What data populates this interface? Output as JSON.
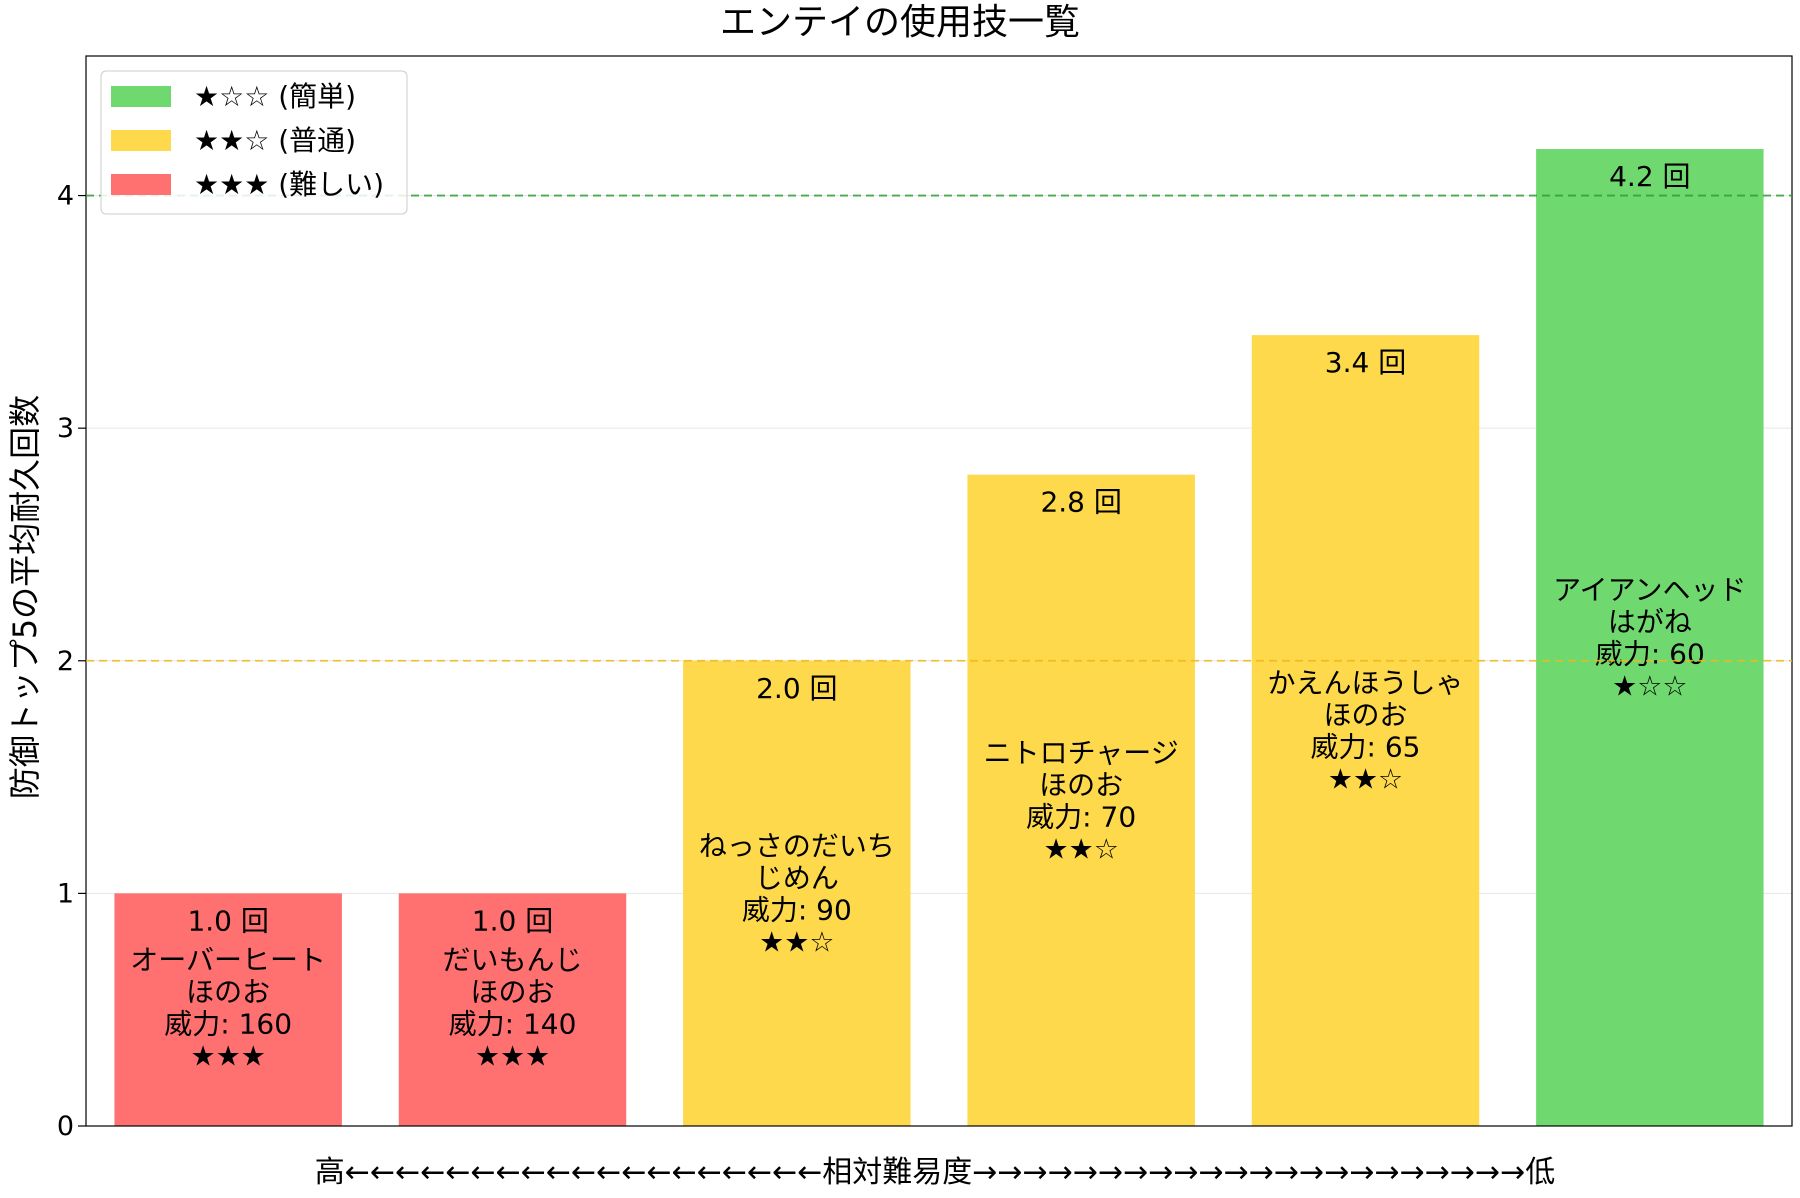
{
  "chart_data": {
    "type": "bar",
    "title": "エンテイの使用技一覧",
    "ylabel": "防御トップ5の平均耐久回数",
    "xlabel": "高←←←←←←←←←←←←←←←←←←←相対難易度→→→→→→→→→→→→→→→→→→→→→→低",
    "ylim": [
      0,
      4.6
    ],
    "yticks": [
      0,
      1,
      2,
      3,
      4
    ],
    "grid": "y",
    "legend_position": "top-left",
    "unit": "回",
    "reference_lines": [
      {
        "y": 4,
        "color": "#2ca02c"
      },
      {
        "y": 2,
        "color": "#f0b81c"
      }
    ],
    "legend": [
      {
        "label": "★☆☆ (簡単)",
        "color": "#6fd96f"
      },
      {
        "label": "★★☆ (普通)",
        "color": "#fdd94b"
      },
      {
        "label": "★★★ (難しい)",
        "color": "#ff7070"
      }
    ],
    "bars": [
      {
        "move": "オーバーヒート",
        "type": "ほのお",
        "power": "威力: 160",
        "stars": "★★★",
        "value": 1.0,
        "value_label": "1.0 回",
        "color": "#ff7070"
      },
      {
        "move": "だいもんじ",
        "type": "ほのお",
        "power": "威力: 140",
        "stars": "★★★",
        "value": 1.0,
        "value_label": "1.0 回",
        "color": "#ff7070"
      },
      {
        "move": "ねっさのだいち\nじめん",
        "type": "",
        "power": "威力: 90",
        "stars": "★★☆",
        "value": 2.0,
        "value_label": "2.0 回",
        "color": "#fdd94b"
      },
      {
        "move": "ニトロチャージ",
        "type": "ほのお",
        "power": "威力: 70",
        "stars": "★★☆",
        "value": 2.8,
        "value_label": "2.8 回",
        "color": "#fdd94b"
      },
      {
        "move": "かえんほうしゃ",
        "type": "ほのお",
        "power": "威力: 65",
        "stars": "★★☆",
        "value": 3.4,
        "value_label": "3.4 回",
        "color": "#fdd94b"
      },
      {
        "move": "アイアンヘッド",
        "type": "はがね",
        "power": "威力: 60",
        "stars": "★☆☆",
        "value": 4.2,
        "value_label": "4.2 回",
        "color": "#6fd96f"
      }
    ]
  }
}
